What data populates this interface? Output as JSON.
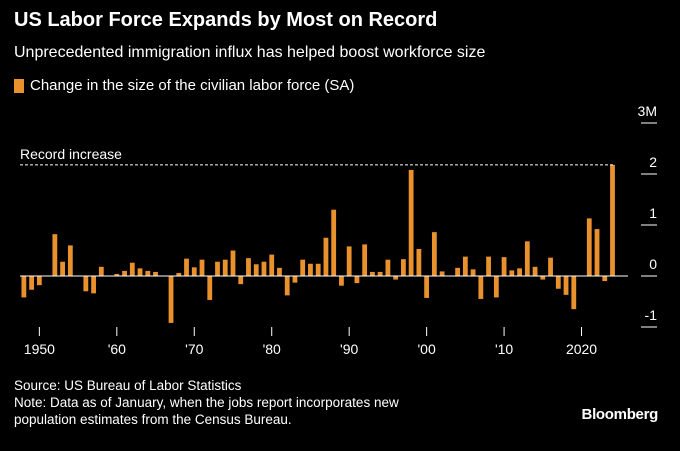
{
  "header": {
    "title": "US Labor Force Expands by Most on Record",
    "subtitle": "Unprecedented immigration influx has helped boost workforce size"
  },
  "legend": {
    "label": "Change in the size of the civilian labor force (SA)",
    "color": "#e8912d"
  },
  "annotation": {
    "record_label": "Record increase"
  },
  "footer": {
    "source": "Source: US Bureau of Labor Statistics",
    "note_line1": "Note: Data as of January, when the jobs report incorporates new",
    "note_line2": "population estimates from the Census Bureau."
  },
  "brand": "Bloomberg",
  "chart_data": {
    "type": "bar",
    "title": "US Labor Force Expands by Most on Record",
    "subtitle": "Unprecedented immigration influx has helped boost workforce size",
    "series": [
      {
        "name": "Change in the size of the civilian labor force (SA)",
        "color": "#e8912d",
        "x": [
          1948,
          1949,
          1950,
          1951,
          1952,
          1953,
          1954,
          1955,
          1956,
          1957,
          1958,
          1959,
          1960,
          1961,
          1962,
          1963,
          1964,
          1965,
          1966,
          1967,
          1968,
          1969,
          1970,
          1971,
          1972,
          1973,
          1974,
          1975,
          1976,
          1977,
          1978,
          1979,
          1980,
          1981,
          1982,
          1983,
          1984,
          1985,
          1986,
          1987,
          1988,
          1989,
          1990,
          1991,
          1992,
          1993,
          1994,
          1995,
          1996,
          1997,
          1998,
          1999,
          2000,
          2001,
          2002,
          2003,
          2004,
          2005,
          2006,
          2007,
          2008,
          2009,
          2010,
          2011,
          2012,
          2013,
          2014,
          2015,
          2016,
          2017,
          2018,
          2019,
          2020,
          2021,
          2022,
          2023,
          2024,
          2025
        ],
        "values": [
          -0.42,
          -0.27,
          -0.18,
          0.0,
          0.82,
          0.28,
          0.6,
          0.0,
          -0.3,
          -0.34,
          0.18,
          0.0,
          0.04,
          0.1,
          0.26,
          0.15,
          0.1,
          0.08,
          0.0,
          -0.92,
          0.06,
          0.34,
          0.17,
          0.32,
          -0.47,
          0.28,
          0.32,
          0.5,
          -0.16,
          0.35,
          0.23,
          0.28,
          0.42,
          0.16,
          -0.38,
          -0.13,
          0.32,
          0.24,
          0.24,
          0.75,
          1.3,
          -0.19,
          0.58,
          -0.14,
          0.62,
          0.08,
          0.08,
          0.32,
          -0.07,
          0.33,
          2.08,
          0.53,
          -0.43,
          0.86,
          0.09,
          0.0,
          0.16,
          0.38,
          0.13,
          -0.45,
          0.38,
          -0.42,
          0.37,
          0.11,
          0.15,
          0.68,
          0.18,
          -0.07,
          0.36,
          -0.25,
          -0.37,
          -0.65,
          0.0,
          1.13,
          0.92,
          -0.1,
          2.18,
          0.0
        ]
      }
    ],
    "yticks": [
      -1,
      0,
      1,
      2,
      3
    ],
    "ytick_labels": [
      "-1",
      "0",
      "1",
      "2",
      "3M"
    ],
    "xticks": [
      1950,
      1960,
      1970,
      1980,
      1990,
      2000,
      2010,
      2020
    ],
    "xtick_labels": [
      "1950",
      "'60",
      "'70",
      "'80",
      "'90",
      "'00",
      "'10",
      "2020"
    ],
    "ylim": [
      -1,
      3
    ],
    "xlim": [
      1947.5,
      2026
    ],
    "reference_line": {
      "y": 2.18,
      "label": "Record increase",
      "style": "dashed"
    },
    "grid": false,
    "legend_position": "top-left",
    "xlabel": "",
    "ylabel": ""
  }
}
